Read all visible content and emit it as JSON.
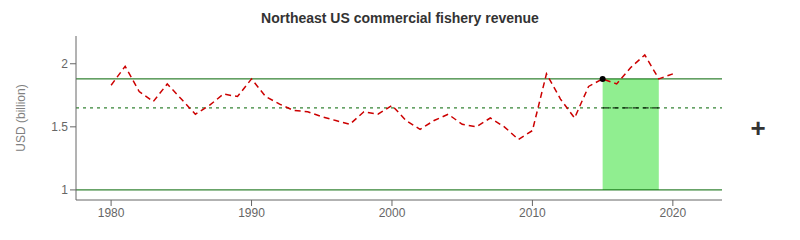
{
  "chart_data": {
    "type": "line",
    "title": "Northeast US commercial fishery revenue",
    "ylabel": "USD (billion)",
    "annotations": [
      "+"
    ],
    "x": [
      1980,
      1981,
      1982,
      1983,
      1984,
      1985,
      1986,
      1987,
      1988,
      1989,
      1990,
      1991,
      1992,
      1993,
      1994,
      1995,
      1996,
      1997,
      1998,
      1999,
      2000,
      2001,
      2002,
      2003,
      2004,
      2005,
      2006,
      2007,
      2008,
      2009,
      2010,
      2011,
      2012,
      2013,
      2014,
      2015,
      2016,
      2017,
      2018,
      2019,
      2020
    ],
    "values": [
      1.83,
      1.98,
      1.78,
      1.7,
      1.84,
      1.72,
      1.6,
      1.67,
      1.76,
      1.74,
      1.88,
      1.74,
      1.68,
      1.63,
      1.62,
      1.58,
      1.55,
      1.52,
      1.62,
      1.6,
      1.67,
      1.55,
      1.48,
      1.55,
      1.6,
      1.52,
      1.5,
      1.57,
      1.5,
      1.4,
      1.47,
      1.92,
      1.72,
      1.57,
      1.82,
      1.88,
      1.84,
      1.97,
      2.07,
      1.88,
      1.92
    ],
    "color": "#CC0000",
    "line_style": "dashed",
    "xlim": [
      1977.5,
      2023.5
    ],
    "xticks": [
      1980,
      1990,
      2000,
      2010,
      2020
    ],
    "ylim": [
      0.92,
      2.22
    ],
    "yticks": [
      1,
      1.5,
      2
    ],
    "grid": false,
    "band": {
      "x0": 2015.0,
      "x1": 2019.0,
      "y0": 1.0,
      "y1": 1.88,
      "color": "#90EE90"
    },
    "reference_lines": [
      {
        "y": 1.88,
        "color": "#006400",
        "line_style": "solid"
      },
      {
        "y": 1.65,
        "color": "#006400",
        "line_style": "dotted"
      },
      {
        "y": 1.0,
        "color": "#006400",
        "line_style": "solid"
      }
    ],
    "segments": [
      {
        "y": 1.65,
        "x0": 2015.0,
        "x1": 2019.0,
        "color": "#000000",
        "line_style": "dashed"
      }
    ],
    "point": {
      "x": 2015,
      "y": 1.88,
      "color": "#000000"
    }
  }
}
